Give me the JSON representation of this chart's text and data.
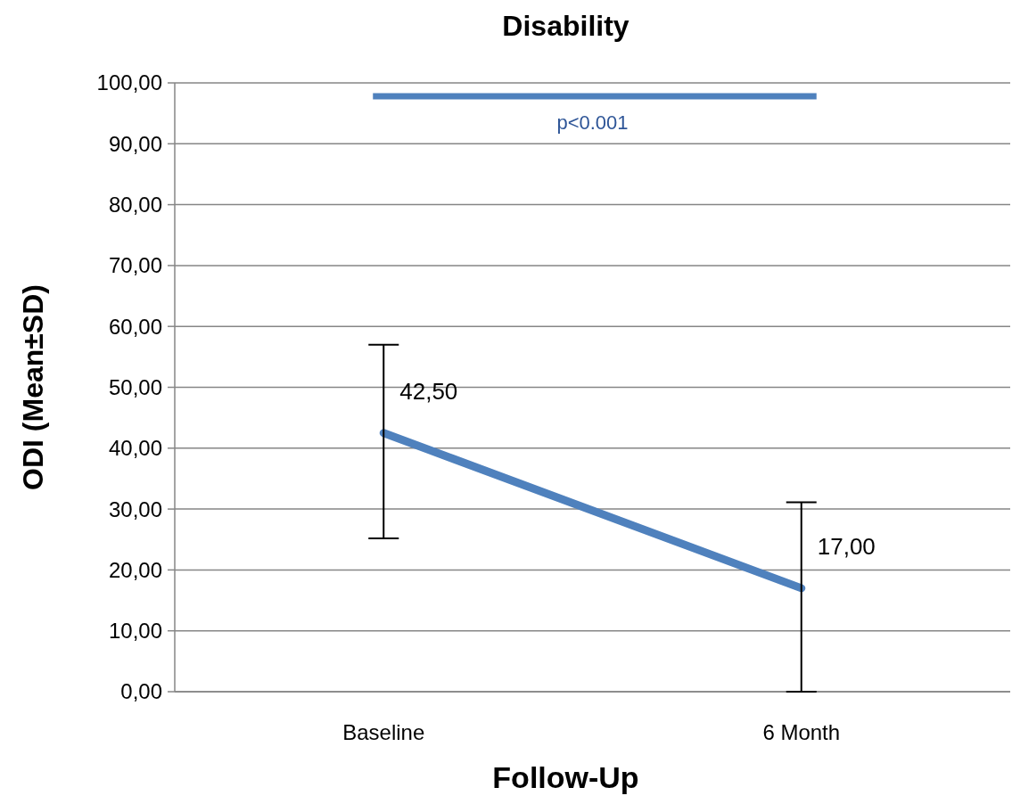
{
  "chart_data": {
    "type": "line",
    "title": "Disability",
    "xlabel": "Follow-Up",
    "ylabel": "ODI (Mean±SD)",
    "categories": [
      "Baseline",
      "6 Month"
    ],
    "series": [
      {
        "color": "#4f81bd",
        "values": [
          42.5,
          17.0
        ],
        "errors": [
          [
            25.2,
            57.0
          ],
          [
            0,
            31.1
          ]
        ],
        "value_labels": [
          "42,50",
          "17,00"
        ]
      }
    ],
    "ylim": [
      0,
      100
    ],
    "yticks": [
      {
        "value": 0,
        "label": "0,00"
      },
      {
        "value": 10,
        "label": "10,00"
      },
      {
        "value": 20,
        "label": "20,00"
      },
      {
        "value": 30,
        "label": "30,00"
      },
      {
        "value": 40,
        "label": "40,00"
      },
      {
        "value": 50,
        "label": "50,00"
      },
      {
        "value": 60,
        "label": "60,00"
      },
      {
        "value": 70,
        "label": "70,00"
      },
      {
        "value": 80,
        "label": "80,00"
      },
      {
        "value": 90,
        "label": "90,00"
      },
      {
        "value": 100,
        "label": "100,00"
      }
    ],
    "grid": "y",
    "marker": "none",
    "line_style": "solid",
    "annotations": [
      "p<0.001"
    ]
  }
}
